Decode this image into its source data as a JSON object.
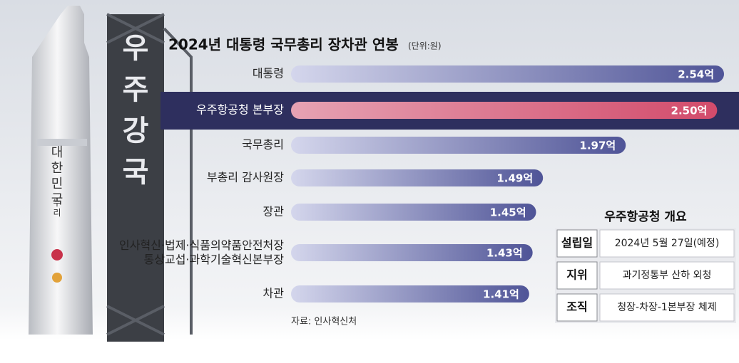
{
  "chart_data": {
    "type": "bar",
    "orientation": "horizontal",
    "title": "2024년 대통령 국무총리 장차관 연봉",
    "subtitle": "(단위:원)",
    "categories": [
      "대통령",
      "우주항공청 본부장",
      "국무총리",
      "부총리 감사원장",
      "장관",
      "인사혁신·법제·식품의약품안전처장\n통상교섭·과학기술혁신본부장",
      "차관"
    ],
    "values": [
      2.54,
      2.5,
      1.97,
      1.49,
      1.45,
      1.43,
      1.41
    ],
    "value_labels": [
      "2.54억",
      "2.50억",
      "1.97억",
      "1.49억",
      "1.45억",
      "1.43억",
      "1.41억"
    ],
    "color": "#4f5497",
    "highlight_index": 1,
    "highlight_color": "#d24b6b",
    "source": "자료: 인사혁신처"
  },
  "info_table": {
    "title": "우주항공청 개요",
    "rows": [
      [
        "설립일",
        "2024년 5월 27일(예정)"
      ],
      [
        "지위",
        "과기정통부 산하 외청"
      ],
      [
        "조직",
        "청장-차장-1본부장 체제"
      ]
    ]
  },
  "photo": {
    "tower_text": "우주강국",
    "rocket_text": "대한민국",
    "rocket_sublabel": "누리"
  }
}
